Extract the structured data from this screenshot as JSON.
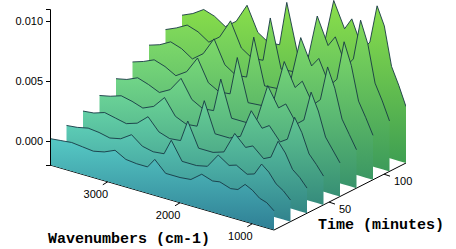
{
  "chart_data": {
    "type": "waterfall",
    "x_label": "Wavenumbers (cm-1)",
    "y_label": "Time (minutes)",
    "x": [
      3800,
      3650,
      3500,
      3350,
      3200,
      3050,
      2900,
      2750,
      2600,
      2450,
      2350,
      2200,
      2000,
      1850,
      1700,
      1550,
      1450,
      1300,
      1200,
      1100,
      1000,
      900,
      800,
      700
    ],
    "y": [
      0,
      15,
      30,
      45,
      60,
      75,
      90,
      105,
      120
    ],
    "z": [
      [
        0.0002,
        0.0003,
        0.0004,
        0.0003,
        0.0002,
        0.0004,
        0.0008,
        0.0003,
        0.0002,
        0.0002,
        0.001,
        0.0001,
        0.0001,
        0.0002,
        0.0009,
        0.0006,
        0.0007,
        0.0004,
        0.0005,
        0.0011,
        0.0008,
        0.0003,
        0.0001,
        -0.0004
      ],
      [
        0.0006,
        0.0007,
        0.0009,
        0.0008,
        0.0006,
        0.0008,
        0.0014,
        0.0007,
        0.0005,
        0.0006,
        0.0019,
        0.0004,
        0.0004,
        0.0006,
        0.0018,
        0.0012,
        0.0014,
        0.0009,
        0.0011,
        0.0021,
        0.0016,
        0.0008,
        0.0004,
        -0.0002
      ],
      [
        0.0011,
        0.0012,
        0.0015,
        0.0013,
        0.0011,
        0.0014,
        0.0022,
        0.0012,
        0.0009,
        0.001,
        0.0028,
        0.0008,
        0.0008,
        0.0011,
        0.0029,
        0.002,
        0.0023,
        0.0015,
        0.0018,
        0.0033,
        0.0025,
        0.0013,
        0.0008,
        0.0001
      ],
      [
        0.0017,
        0.0019,
        0.0022,
        0.002,
        0.0017,
        0.0021,
        0.0031,
        0.0018,
        0.0014,
        0.0015,
        0.0038,
        0.0013,
        0.0013,
        0.0017,
        0.0041,
        0.0029,
        0.0033,
        0.0022,
        0.0026,
        0.0046,
        0.0035,
        0.0019,
        0.0012,
        0.0004
      ],
      [
        0.0024,
        0.0026,
        0.003,
        0.0027,
        0.0023,
        0.0028,
        0.004,
        0.0025,
        0.002,
        0.0021,
        0.0049,
        0.0019,
        0.0019,
        0.0024,
        0.0055,
        0.0039,
        0.0044,
        0.003,
        0.0035,
        0.006,
        0.0046,
        0.0026,
        0.0017,
        0.0008
      ],
      [
        0.0031,
        0.0034,
        0.0038,
        0.0035,
        0.003,
        0.0036,
        0.005,
        0.0032,
        0.0027,
        0.0028,
        0.006,
        0.0025,
        0.0026,
        0.0032,
        0.0068,
        0.0049,
        0.0056,
        0.0039,
        0.0045,
        0.0074,
        0.0058,
        0.0034,
        0.0023,
        0.0012
      ],
      [
        0.0038,
        0.0041,
        0.0046,
        0.0043,
        0.0037,
        0.0044,
        0.0059,
        0.004,
        0.0034,
        0.0035,
        0.007,
        0.0032,
        0.0033,
        0.004,
        0.0081,
        0.006,
        0.0068,
        0.0048,
        0.0055,
        0.0088,
        0.007,
        0.0042,
        0.003,
        0.0017
      ],
      [
        0.0044,
        0.0048,
        0.0053,
        0.005,
        0.0044,
        0.0051,
        0.0067,
        0.0047,
        0.0041,
        0.0042,
        0.0079,
        0.0039,
        0.004,
        0.0048,
        0.0092,
        0.007,
        0.0079,
        0.0057,
        0.0065,
        0.0099,
        0.0081,
        0.005,
        0.0037,
        0.0022
      ],
      [
        0.0049,
        0.0053,
        0.0059,
        0.0056,
        0.005,
        0.0057,
        0.0073,
        0.0053,
        0.0047,
        0.0048,
        0.0085,
        0.0045,
        0.0046,
        0.0054,
        0.0098,
        0.0077,
        0.0087,
        0.0064,
        0.0072,
        0.0104,
        0.0089,
        0.0057,
        0.0043,
        0.0027
      ]
    ],
    "xlim": [
      3800,
      700
    ],
    "ylim": [
      0,
      120
    ],
    "zlim": [
      -0.002,
      0.011
    ],
    "xticks": [
      3000,
      2000,
      1000
    ],
    "yticks": [
      50,
      100
    ],
    "zticks": [
      {
        "value": 0,
        "label": "0.000"
      },
      0.005,
      {
        "value": 0.01,
        "label": "0.010"
      }
    ]
  }
}
